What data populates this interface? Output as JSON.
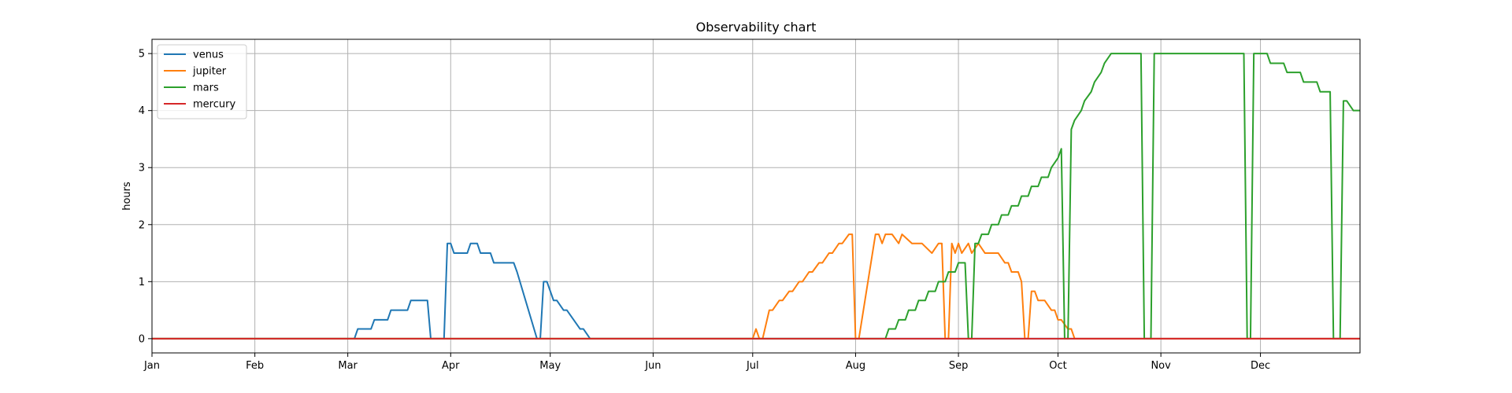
{
  "chart_data": {
    "type": "line",
    "title": "Observability chart",
    "xlabel": "",
    "ylabel": "hours",
    "x_unit": "day of year",
    "xlim": [
      1,
      365
    ],
    "ylim": [
      -0.25,
      5.25
    ],
    "x_tick_positions": [
      1,
      32,
      60,
      91,
      121,
      152,
      182,
      213,
      244,
      274,
      305,
      335
    ],
    "x_tick_labels": [
      "Jan",
      "Feb",
      "Mar",
      "Apr",
      "May",
      "Jun",
      "Jul",
      "Aug",
      "Sep",
      "Oct",
      "Nov",
      "Dec"
    ],
    "y_ticks": [
      0,
      1,
      2,
      3,
      4,
      5
    ],
    "y_tick_labels": [
      "0",
      "1",
      "2",
      "3",
      "4",
      "5"
    ],
    "grid": true,
    "legend_position": "top-left",
    "series": [
      {
        "name": "venus",
        "color": "#1f77b4",
        "x": [
          1,
          62,
          63,
          67,
          68,
          72,
          73,
          78,
          79,
          84,
          85,
          89,
          90,
          91,
          92,
          96,
          97,
          99,
          100,
          103,
          104,
          110,
          111,
          117,
          118,
          119,
          120,
          122,
          123,
          125,
          126,
          130,
          131,
          133,
          134,
          135,
          136,
          138,
          139,
          365
        ],
        "y": [
          0,
          0,
          0.17,
          0.17,
          0.33,
          0.33,
          0.5,
          0.5,
          0.67,
          0.67,
          0,
          0,
          1.67,
          1.67,
          1.5,
          1.5,
          1.67,
          1.67,
          1.5,
          1.5,
          1.33,
          1.33,
          1.17,
          0,
          0,
          1.0,
          1.0,
          0.67,
          0.67,
          0.5,
          0.5,
          0.17,
          0.17,
          0,
          0,
          0,
          0,
          0,
          0,
          0
        ]
      },
      {
        "name": "jupiter",
        "color": "#ff7f0e",
        "x": [
          1,
          182,
          183,
          184,
          185,
          187,
          188,
          190,
          191,
          193,
          194,
          196,
          197,
          199,
          200,
          202,
          203,
          205,
          206,
          208,
          209,
          211,
          212,
          213,
          214,
          219,
          220,
          221,
          222,
          223,
          224,
          226,
          227,
          230,
          231,
          233,
          236,
          238,
          239,
          240,
          241,
          242,
          243,
          244,
          245,
          247,
          248,
          250,
          252,
          256,
          258,
          259,
          260,
          262,
          263,
          264,
          265,
          266,
          267,
          268,
          270,
          272,
          273,
          274,
          275,
          277,
          278,
          279,
          280,
          365
        ],
        "y": [
          0,
          0,
          0.17,
          0,
          0,
          0.5,
          0.5,
          0.67,
          0.67,
          0.83,
          0.83,
          1.0,
          1.0,
          1.17,
          1.17,
          1.33,
          1.33,
          1.5,
          1.5,
          1.67,
          1.67,
          1.83,
          1.83,
          0,
          0,
          1.83,
          1.83,
          1.67,
          1.83,
          1.83,
          1.83,
          1.67,
          1.83,
          1.67,
          1.67,
          1.67,
          1.5,
          1.67,
          1.67,
          0,
          0,
          1.67,
          1.5,
          1.67,
          1.5,
          1.67,
          1.5,
          1.67,
          1.5,
          1.5,
          1.33,
          1.33,
          1.17,
          1.17,
          1.0,
          0,
          0,
          0.83,
          0.83,
          0.67,
          0.67,
          0.5,
          0.5,
          0.33,
          0.33,
          0.17,
          0.17,
          0,
          0,
          0
        ]
      },
      {
        "name": "mars",
        "color": "#2ca02c",
        "x": [
          1,
          222,
          223,
          225,
          226,
          228,
          229,
          231,
          232,
          234,
          235,
          237,
          238,
          240,
          241,
          243,
          244,
          246,
          247,
          248,
          249,
          250,
          251,
          253,
          254,
          256,
          257,
          259,
          260,
          262,
          263,
          265,
          266,
          268,
          269,
          271,
          272,
          274,
          275,
          276,
          277,
          278,
          279,
          281,
          282,
          284,
          285,
          287,
          288,
          290,
          291,
          293,
          294,
          296,
          297,
          299,
          300,
          302,
          303,
          304,
          305,
          306,
          307,
          330,
          331,
          332,
          333,
          337,
          338,
          342,
          343,
          347,
          348,
          352,
          353,
          356,
          357,
          358,
          359,
          360,
          361,
          363,
          365
        ],
        "y": [
          0,
          0,
          0.17,
          0.17,
          0.33,
          0.33,
          0.5,
          0.5,
          0.67,
          0.67,
          0.83,
          0.83,
          1.0,
          1.0,
          1.17,
          1.17,
          1.33,
          1.33,
          0,
          0,
          1.67,
          1.67,
          1.83,
          1.83,
          2.0,
          2.0,
          2.17,
          2.17,
          2.33,
          2.33,
          2.5,
          2.5,
          2.67,
          2.67,
          2.83,
          2.83,
          3.0,
          3.17,
          3.33,
          0,
          0,
          3.67,
          3.83,
          4.0,
          4.17,
          4.33,
          4.5,
          4.67,
          4.83,
          5.0,
          5.0,
          5.0,
          5.0,
          5.0,
          5.0,
          5.0,
          0,
          0,
          5.0,
          5.0,
          5.0,
          5.0,
          5.0,
          5.0,
          0,
          0,
          5.0,
          5.0,
          4.83,
          4.83,
          4.67,
          4.67,
          4.5,
          4.5,
          4.33,
          4.33,
          0,
          0,
          0,
          4.17,
          4.17,
          4.0,
          4.0
        ]
      },
      {
        "name": "mercury",
        "color": "#d62728",
        "x": [
          1,
          365
        ],
        "y": [
          0,
          0
        ]
      }
    ]
  }
}
